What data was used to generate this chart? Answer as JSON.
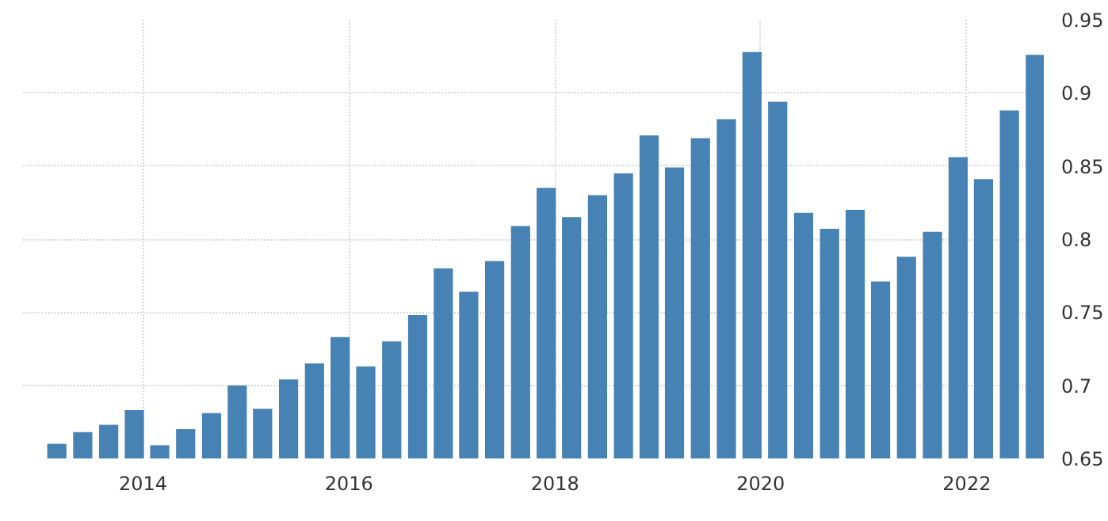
{
  "chart_data": {
    "type": "bar",
    "x": [
      "2013-03",
      "2013-06",
      "2013-09",
      "2013-12",
      "2014-03",
      "2014-06",
      "2014-09",
      "2014-12",
      "2015-03",
      "2015-06",
      "2015-09",
      "2015-12",
      "2016-03",
      "2016-06",
      "2016-09",
      "2016-12",
      "2017-03",
      "2017-06",
      "2017-09",
      "2017-12",
      "2018-03",
      "2018-06",
      "2018-09",
      "2018-12",
      "2019-03",
      "2019-06",
      "2019-09",
      "2019-12",
      "2020-03",
      "2020-06",
      "2020-09",
      "2020-12",
      "2021-03",
      "2021-06",
      "2021-09",
      "2021-12",
      "2022-03",
      "2022-06",
      "2022-09"
    ],
    "series": [
      {
        "color": "#4682b4",
        "values": [
          0.66,
          0.668,
          0.673,
          0.683,
          0.659,
          0.67,
          0.681,
          0.7,
          0.684,
          0.704,
          0.715,
          0.733,
          0.713,
          0.73,
          0.748,
          0.78,
          0.764,
          0.785,
          0.809,
          0.835,
          0.815,
          0.83,
          0.845,
          0.871,
          0.849,
          0.869,
          0.882,
          0.928,
          0.894,
          0.818,
          0.807,
          0.82,
          0.771,
          0.788,
          0.805,
          0.856,
          0.841,
          0.888,
          0.926
        ]
      }
    ],
    "xlim": [
      "2012-11",
      "2022-10"
    ],
    "xticks": [
      "2014",
      "2016",
      "2018",
      "2020",
      "2022"
    ],
    "ylim": [
      0.65,
      0.95
    ],
    "yticks": [
      {
        "value": 0.65,
        "label": "0.65"
      },
      {
        "value": 0.7,
        "label": "0.7"
      },
      {
        "value": 0.75,
        "label": "0.75"
      },
      {
        "value": 0.8,
        "label": "0.8"
      },
      {
        "value": 0.85,
        "label": "0.85"
      },
      {
        "value": 0.9,
        "label": "0.9"
      },
      {
        "value": 0.95,
        "label": "0.95"
      }
    ],
    "grid": true
  }
}
